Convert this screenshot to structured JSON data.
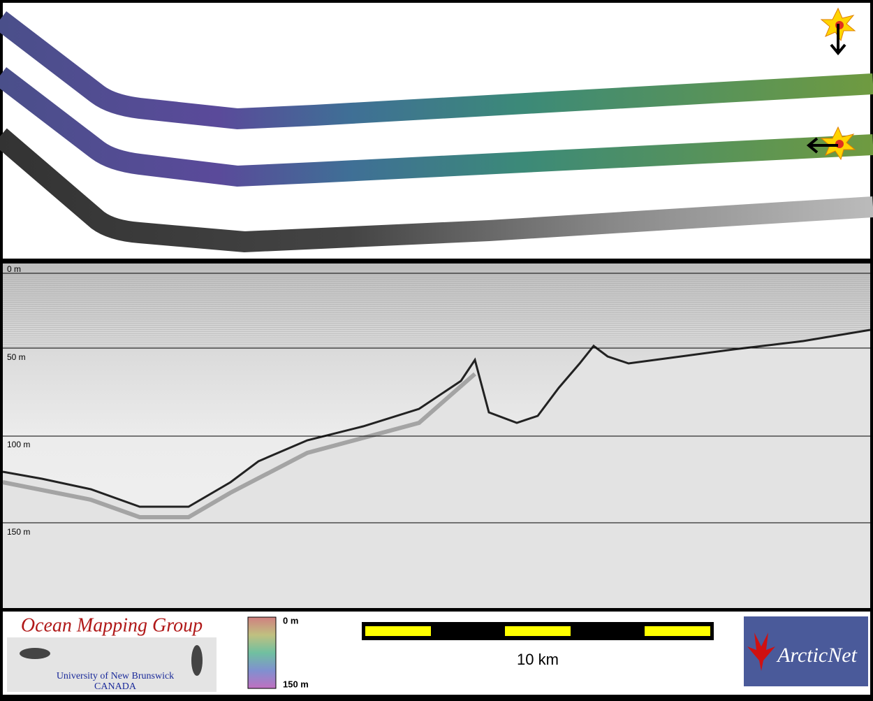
{
  "profile": {
    "depth_labels": [
      "0 m",
      "50 m",
      "100 m",
      "150 m"
    ]
  },
  "footer": {
    "logo": {
      "title": "Ocean Mapping Group",
      "university": "University of New Brunswick",
      "country": "CANADA"
    },
    "color_scale": {
      "top": "0 m",
      "bottom": "150 m"
    },
    "scale_bar": "10 km",
    "partner": "ArcticNet"
  }
}
